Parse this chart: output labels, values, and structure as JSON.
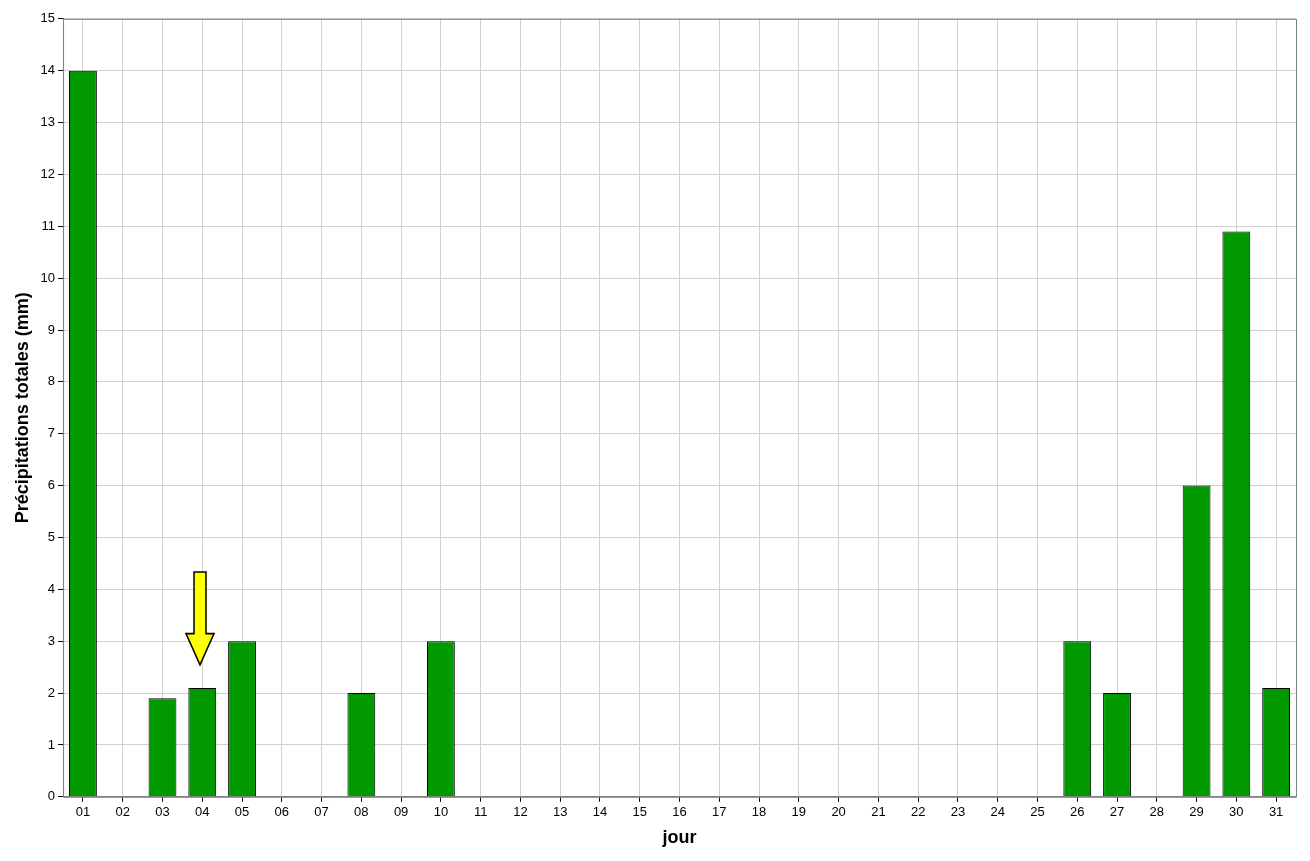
{
  "chart_data": {
    "type": "bar",
    "xlabel": "jour",
    "ylabel": "Précipitations totales (mm)",
    "categories": [
      "01",
      "02",
      "03",
      "04",
      "05",
      "06",
      "07",
      "08",
      "09",
      "10",
      "11",
      "12",
      "13",
      "14",
      "15",
      "16",
      "17",
      "18",
      "19",
      "20",
      "21",
      "22",
      "23",
      "24",
      "25",
      "26",
      "27",
      "28",
      "29",
      "30",
      "31"
    ],
    "values": [
      14,
      0,
      1.9,
      2.1,
      3,
      0,
      0,
      2,
      0,
      3,
      0,
      0,
      0,
      0,
      0,
      0,
      0,
      0,
      0,
      0,
      0,
      0,
      0,
      0,
      0,
      3,
      2,
      0,
      6,
      10.9,
      2.1
    ],
    "color": "#009900",
    "ylim": [
      0,
      15
    ],
    "yticks": [
      0,
      1,
      2,
      3,
      4,
      5,
      6,
      7,
      8,
      9,
      10,
      11,
      12,
      13,
      14,
      15
    ],
    "grid": true,
    "legend": false
  }
}
